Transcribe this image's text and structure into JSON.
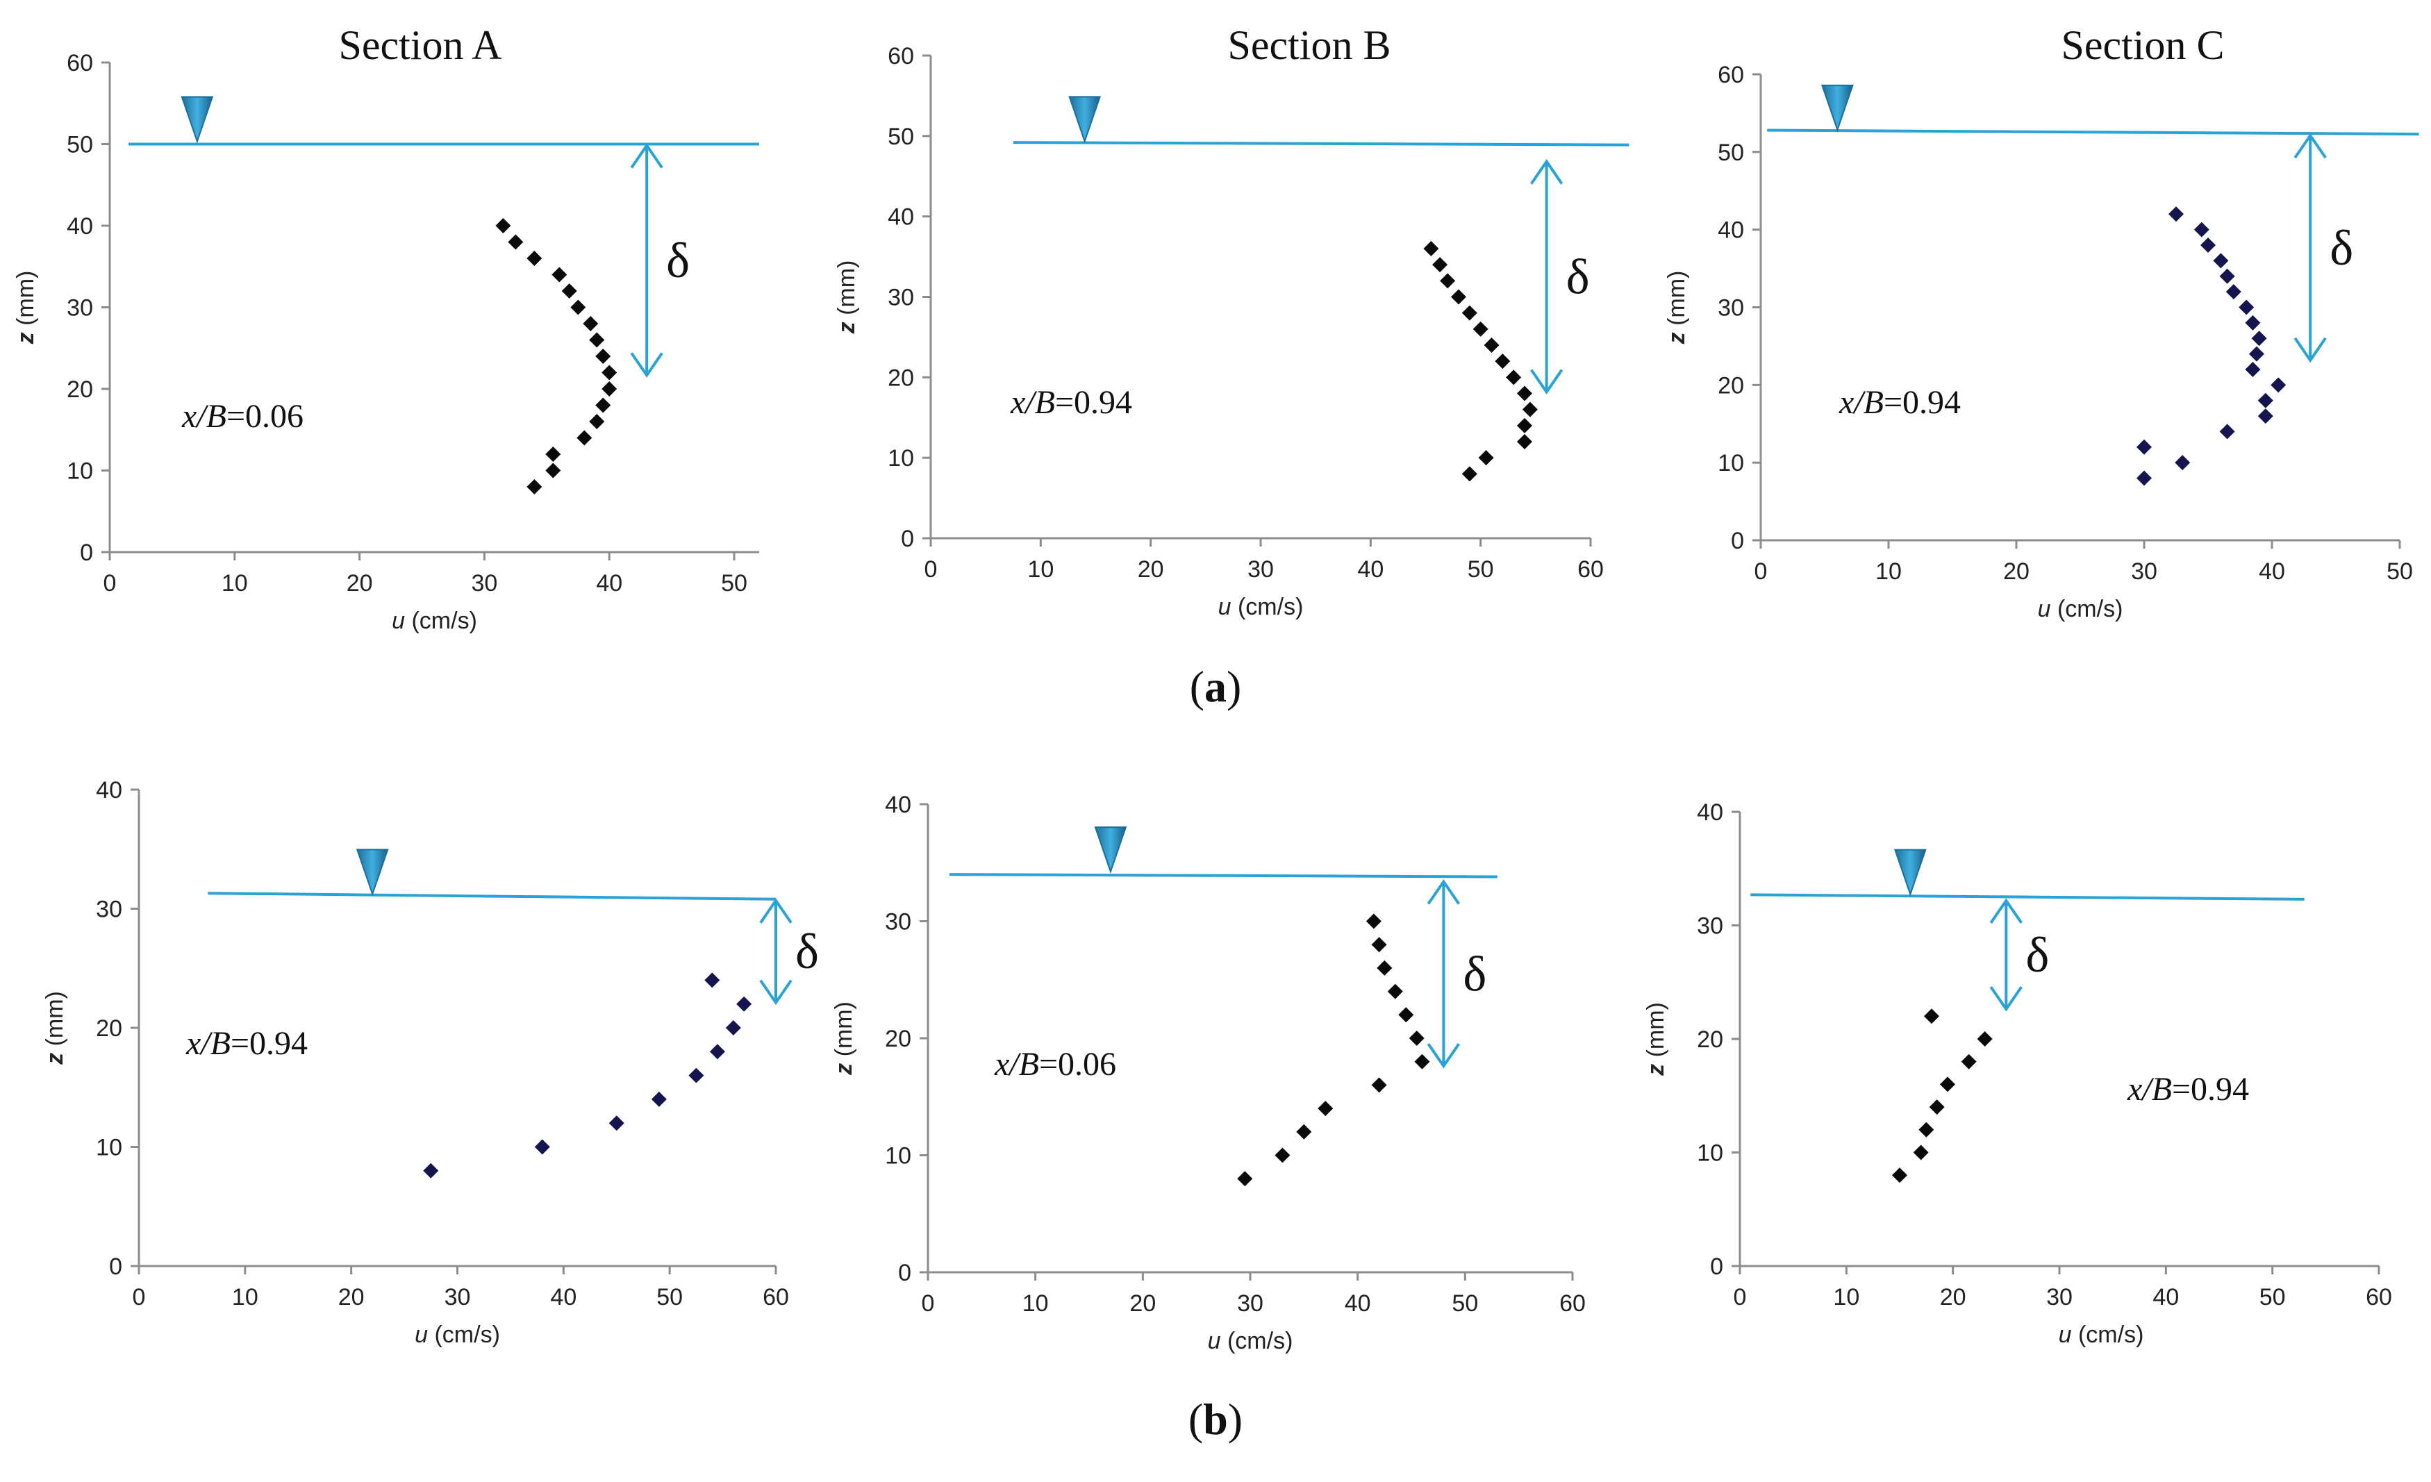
{
  "captions": [
    "(a)",
    "(b)"
  ],
  "styles": {
    "water_color": "#29a3d6",
    "marker_color": "#0a0a0a",
    "marker_color_navy": "#14144e",
    "axis_color": "#8c8c8c",
    "delta_symbol": "δ"
  },
  "chart_data": [
    {
      "type": "scatter",
      "title": "Section A",
      "annotation": "x/B=0.06",
      "xlabel": "u (cm/s)",
      "ylabel": "z (mm)",
      "xlim": [
        0,
        52
      ],
      "ylim": [
        0,
        60
      ],
      "xticks": [
        0,
        10,
        20,
        30,
        40,
        50
      ],
      "yticks": [
        0,
        10,
        20,
        30,
        40,
        50,
        60
      ],
      "water_level": 50,
      "free_surface": [
        [
          1.5,
          50
        ],
        [
          52,
          50
        ]
      ],
      "triangle_x": 7,
      "delta_x": 43,
      "delta_range": [
        21.5,
        50
      ],
      "marker": "black",
      "points": [
        [
          31.5,
          40
        ],
        [
          32.5,
          38
        ],
        [
          34,
          36
        ],
        [
          36,
          34
        ],
        [
          36.8,
          32
        ],
        [
          37.5,
          30
        ],
        [
          38.5,
          28
        ],
        [
          39,
          26
        ],
        [
          39.5,
          24
        ],
        [
          40,
          22
        ],
        [
          40,
          20
        ],
        [
          39.5,
          18
        ],
        [
          39,
          16
        ],
        [
          38,
          14
        ],
        [
          35.5,
          12
        ],
        [
          35.5,
          10
        ],
        [
          34,
          8
        ]
      ]
    },
    {
      "type": "scatter",
      "title": "Section B",
      "annotation": "x/B=0.94",
      "xlabel": "u (cm/s)",
      "ylabel": "z (mm)",
      "xlim": [
        0,
        60
      ],
      "ylim": [
        0,
        60
      ],
      "xticks": [
        0,
        10,
        20,
        30,
        40,
        50,
        60
      ],
      "yticks": [
        0,
        10,
        20,
        30,
        40,
        50,
        60
      ],
      "water_level": 49,
      "free_surface": [
        [
          7.5,
          49.2
        ],
        [
          63.5,
          48.9
        ]
      ],
      "triangle_x": 14,
      "delta_x": 56,
      "delta_range": [
        18,
        47
      ],
      "marker": "black",
      "points": [
        [
          45.5,
          36
        ],
        [
          46.3,
          34
        ],
        [
          47,
          32
        ],
        [
          48,
          30
        ],
        [
          49,
          28
        ],
        [
          50,
          26
        ],
        [
          51,
          24
        ],
        [
          52,
          22
        ],
        [
          53,
          20
        ],
        [
          54,
          18
        ],
        [
          54.5,
          16
        ],
        [
          54,
          14
        ],
        [
          54,
          12
        ],
        [
          50.5,
          10
        ],
        [
          49,
          8
        ]
      ]
    },
    {
      "type": "scatter",
      "title": "Section C",
      "annotation": "x/B=0.94",
      "xlabel": "u (cm/s)",
      "ylabel": "z (mm)",
      "xlim": [
        0,
        50
      ],
      "ylim": [
        0,
        60
      ],
      "xticks": [
        0,
        10,
        20,
        30,
        40,
        50
      ],
      "yticks": [
        0,
        10,
        20,
        30,
        40,
        50,
        60
      ],
      "water_level": 52.5,
      "free_surface": [
        [
          0.5,
          52.8
        ],
        [
          51.5,
          52.3
        ]
      ],
      "triangle_x": 6,
      "delta_x": 43,
      "delta_range": [
        23,
        52.3
      ],
      "marker": "navy",
      "points": [
        [
          32.5,
          42
        ],
        [
          34.5,
          40
        ],
        [
          35,
          38
        ],
        [
          36,
          36
        ],
        [
          36.5,
          34
        ],
        [
          37,
          32
        ],
        [
          38,
          30
        ],
        [
          38.5,
          28
        ],
        [
          39,
          26
        ],
        [
          38.8,
          24
        ],
        [
          38.5,
          22
        ],
        [
          40.5,
          20
        ],
        [
          39.5,
          18
        ],
        [
          39.5,
          16
        ],
        [
          36.5,
          14
        ],
        [
          33,
          10
        ],
        [
          30,
          12
        ],
        [
          30,
          8
        ]
      ]
    },
    {
      "type": "scatter",
      "title": "",
      "annotation": "x/B=0.94",
      "xlabel": "u (cm/s)",
      "ylabel": "z (mm)",
      "xlim": [
        0,
        60
      ],
      "ylim": [
        0,
        40
      ],
      "xticks": [
        0,
        10,
        20,
        30,
        40,
        50,
        60
      ],
      "yticks": [
        0,
        10,
        20,
        30,
        40
      ],
      "water_level": 31,
      "free_surface": [
        [
          6.5,
          31.3
        ],
        [
          60,
          30.8
        ]
      ],
      "triangle_x": 22,
      "delta_x": 60,
      "delta_range": [
        22,
        30.8
      ],
      "marker": "navy",
      "points": [
        [
          27.5,
          8
        ],
        [
          38,
          10
        ],
        [
          45,
          12
        ],
        [
          49,
          14
        ],
        [
          52.5,
          16
        ],
        [
          54.5,
          18
        ],
        [
          56,
          20
        ],
        [
          57,
          22
        ],
        [
          54,
          24
        ]
      ]
    },
    {
      "type": "scatter",
      "title": "",
      "annotation": "x/B=0.06",
      "xlabel": "u (cm/s)",
      "ylabel": "z (mm)",
      "xlim": [
        0,
        60
      ],
      "ylim": [
        0,
        40
      ],
      "xticks": [
        0,
        10,
        20,
        30,
        40,
        50,
        60
      ],
      "yticks": [
        0,
        10,
        20,
        30,
        40
      ],
      "water_level": 34,
      "free_surface": [
        [
          2,
          34
        ],
        [
          53,
          33.8
        ]
      ],
      "triangle_x": 17,
      "delta_x": 48,
      "delta_range": [
        17.5,
        33.5
      ],
      "marker": "black",
      "points": [
        [
          29.5,
          8
        ],
        [
          33,
          10
        ],
        [
          35,
          12
        ],
        [
          37,
          14
        ],
        [
          42,
          16
        ],
        [
          46,
          18
        ],
        [
          45.5,
          20
        ],
        [
          44.5,
          22
        ],
        [
          43.5,
          24
        ],
        [
          42.5,
          26
        ],
        [
          42,
          28
        ],
        [
          41.5,
          30
        ]
      ]
    },
    {
      "type": "scatter",
      "title": "",
      "annotation": "x/B=0.94",
      "xlabel": "u  (cm/s)",
      "ylabel": "z (mm)",
      "xlim": [
        0,
        60
      ],
      "ylim": [
        0,
        40
      ],
      "xticks": [
        0,
        10,
        20,
        30,
        40,
        50,
        60
      ],
      "yticks": [
        0,
        10,
        20,
        30,
        40
      ],
      "water_level": 32.5,
      "free_surface": [
        [
          1,
          32.7
        ],
        [
          53,
          32.3
        ]
      ],
      "triangle_x": 16,
      "delta_x": 25,
      "delta_range": [
        22.5,
        32.3
      ],
      "marker": "black",
      "points": [
        [
          15,
          8
        ],
        [
          17,
          10
        ],
        [
          17.5,
          12
        ],
        [
          18.5,
          14
        ],
        [
          19.5,
          16
        ],
        [
          21.5,
          18
        ],
        [
          23,
          20
        ],
        [
          18,
          22
        ]
      ]
    }
  ]
}
